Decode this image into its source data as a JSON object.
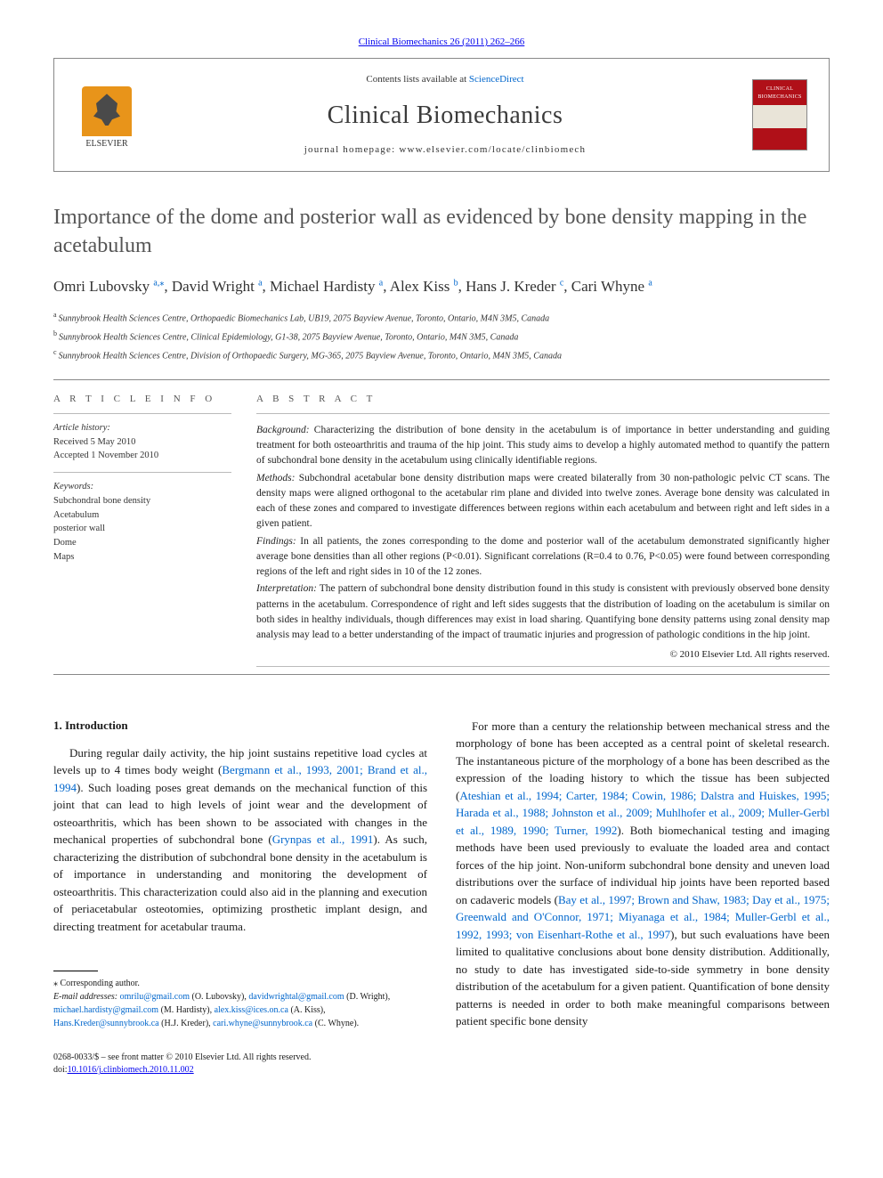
{
  "journal_ref": "Clinical Biomechanics 26 (2011) 262–266",
  "header": {
    "elsevier_label": "ELSEVIER",
    "contents_prefix": "Contents lists available at ",
    "contents_link": "ScienceDirect",
    "journal_title": "Clinical Biomechanics",
    "homepage_prefix": "journal homepage: ",
    "homepage_url": "www.elsevier.com/locate/clinbiomech",
    "thumb_top": "CLINICAL",
    "thumb_bottom": "BIOMECHANICS"
  },
  "article": {
    "title": "Importance of the dome and posterior wall as evidenced by bone density mapping in the acetabulum",
    "authors": [
      {
        "name": "Omri Lubovsky",
        "marks": "a,",
        "corr": "⁎"
      },
      {
        "name": "David Wright",
        "marks": "a"
      },
      {
        "name": "Michael Hardisty",
        "marks": "a"
      },
      {
        "name": "Alex Kiss",
        "marks": "b"
      },
      {
        "name": "Hans J. Kreder",
        "marks": "c"
      },
      {
        "name": "Cari Whyne",
        "marks": "a"
      }
    ],
    "affiliations": [
      {
        "label": "a",
        "text": "Sunnybrook Health Sciences Centre, Orthopaedic Biomechanics Lab, UB19, 2075 Bayview Avenue, Toronto, Ontario, M4N 3M5, Canada"
      },
      {
        "label": "b",
        "text": "Sunnybrook Health Sciences Centre, Clinical Epidemiology, G1-38, 2075 Bayview Avenue, Toronto, Ontario, M4N 3M5, Canada"
      },
      {
        "label": "c",
        "text": "Sunnybrook Health Sciences Centre, Division of Orthopaedic Surgery, MG-365, 2075 Bayview Avenue, Toronto, Ontario, M4N 3M5, Canada"
      }
    ]
  },
  "info": {
    "heading": "A R T I C L E   I N F O",
    "history_label": "Article history:",
    "received": "Received 5 May 2010",
    "accepted": "Accepted 1 November 2010",
    "keywords_label": "Keywords:",
    "keywords": [
      "Subchondral bone density",
      "Acetabulum",
      "posterior wall",
      "Dome",
      "Maps"
    ]
  },
  "abstract": {
    "heading": "A B S T R A C T",
    "background_label": "Background:",
    "background": " Characterizing the distribution of bone density in the acetabulum is of importance in better understanding and guiding treatment for both osteoarthritis and trauma of the hip joint. This study aims to develop a highly automated method to quantify the pattern of subchondral bone density in the acetabulum using clinically identifiable regions.",
    "methods_label": "Methods:",
    "methods": " Subchondral acetabular bone density distribution maps were created bilaterally from 30 non-pathologic pelvic CT scans. The density maps were aligned orthogonal to the acetabular rim plane and divided into twelve zones. Average bone density was calculated in each of these zones and compared to investigate differences between regions within each acetabulum and between right and left sides in a given patient.",
    "findings_label": "Findings:",
    "findings": " In all patients, the zones corresponding to the dome and posterior wall of the acetabulum demonstrated significantly higher average bone densities than all other regions (P<0.01). Significant correlations (R=0.4 to 0.76, P<0.05) were found between corresponding regions of the left and right sides in 10 of the 12 zones.",
    "interpretation_label": "Interpretation:",
    "interpretation": " The pattern of subchondral bone density distribution found in this study is consistent with previously observed bone density patterns in the acetabulum. Correspondence of right and left sides suggests that the distribution of loading on the acetabulum is similar on both sides in healthy individuals, though differences may exist in load sharing. Quantifying bone density patterns using zonal density map analysis may lead to a better understanding of the impact of traumatic injuries and progression of pathologic conditions in the hip joint.",
    "copyright": "© 2010 Elsevier Ltd. All rights reserved."
  },
  "body": {
    "section_heading": "1. Introduction",
    "p1_pre": "During regular daily activity, the hip joint sustains repetitive load cycles at levels up to 4 times body weight (",
    "p1_cite1": "Bergmann et al., 1993, 2001; Brand et al., 1994",
    "p1_mid1": "). Such loading poses great demands on the mechanical function of this joint that can lead to high levels of joint wear and the development of osteoarthritis, which has been shown to be associated with changes in the mechanical properties of subchondral bone (",
    "p1_cite2": "Grynpas et al., 1991",
    "p1_post": "). As such, characterizing the distribution of subchondral bone density in the acetabulum is of importance in understanding and monitoring the development of osteoarthritis. This characterization could also aid in the planning and execution of periacetabular osteotomies, optimizing prosthetic implant design, and directing treatment for acetabular trauma.",
    "p2_pre": "For more than a century the relationship between mechanical stress and the morphology of bone has been accepted as a central point of skeletal research. The instantaneous picture of the morphology of a bone has been described as the expression of the loading history to which the tissue has been subjected (",
    "p2_cite1": "Ateshian et al., 1994; Carter, 1984; Cowin, 1986; Dalstra and Huiskes, 1995; Harada et al., 1988; Johnston et al., 2009; Muhlhofer et al., 2009; Muller-Gerbl et al., 1989, 1990; Turner, 1992",
    "p2_mid1": "). Both biomechanical testing and imaging methods have been used previously to evaluate the loaded area and contact forces of the hip joint. Non-uniform subchondral bone density and uneven load distributions over the surface of individual hip joints have been reported based on cadaveric models (",
    "p2_cite2": "Bay et al., 1997; Brown and Shaw, 1983; Day et al., 1975; Greenwald and O'Connor, 1971; Miyanaga et al., 1984; Muller-Gerbl et al., 1992, 1993; von Eisenhart-Rothe et al., 1997",
    "p2_post": "), but such evaluations have been limited to qualitative conclusions about bone density distribution. Additionally, no study to date has investigated side-to-side symmetry in bone density distribution of the acetabulum for a given patient. Quantification of bone density patterns is needed in order to both make meaningful comparisons between patient specific bone density"
  },
  "footnotes": {
    "corr_label": "⁎ Corresponding author.",
    "email_label": "E-mail addresses:",
    "emails": [
      {
        "addr": "omrilu@gmail.com",
        "who": " (O. Lubovsky), "
      },
      {
        "addr": "davidwrightal@gmail.com",
        "who": " (D. Wright), "
      },
      {
        "addr": "michael.hardisty@gmail.com",
        "who": " (M. Hardisty), "
      },
      {
        "addr": "alex.kiss@ices.on.ca",
        "who": " (A. Kiss), "
      },
      {
        "addr": "Hans.Kreder@sunnybrook.ca",
        "who": " (H.J. Kreder), "
      },
      {
        "addr": "cari.whyne@sunnybrook.ca",
        "who": " (C. Whyne)."
      }
    ]
  },
  "footer": {
    "line1": "0268-0033/$ – see front matter © 2010 Elsevier Ltd. All rights reserved.",
    "line2": "doi:",
    "doi": "10.1016/j.clinbiomech.2010.11.002"
  },
  "colors": {
    "link": "#0066cc",
    "elsevier_orange": "#e8941a",
    "thumb_red": "#b01018"
  }
}
